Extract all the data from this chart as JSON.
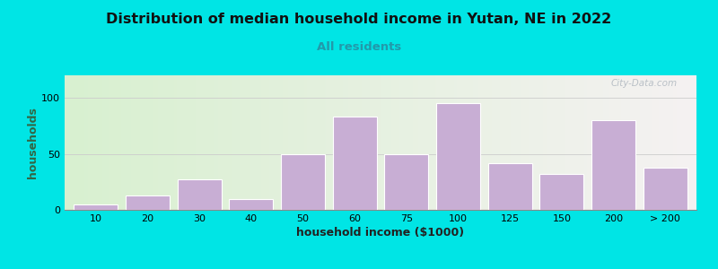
{
  "title": "Distribution of median household income in Yutan, NE in 2022",
  "subtitle": "All residents",
  "xlabel": "household income ($1000)",
  "ylabel": "households",
  "bar_labels": [
    "10",
    "20",
    "30",
    "40",
    "50",
    "60",
    "75",
    "100",
    "125",
    "150",
    "200",
    "> 200"
  ],
  "bar_values": [
    5,
    13,
    27,
    10,
    50,
    83,
    50,
    95,
    42,
    32,
    80,
    38
  ],
  "bar_color": "#c8aed4",
  "bar_edgecolor": "#ffffff",
  "background_outer": "#00e5e5",
  "background_inner_left": "#d8f0d0",
  "background_inner_right": "#f5f2f2",
  "yticks": [
    0,
    50,
    100
  ],
  "ylim": [
    0,
    120
  ],
  "title_fontsize": 11.5,
  "subtitle_fontsize": 9.5,
  "axis_label_fontsize": 9,
  "tick_fontsize": 8,
  "watermark": "City-Data.com"
}
